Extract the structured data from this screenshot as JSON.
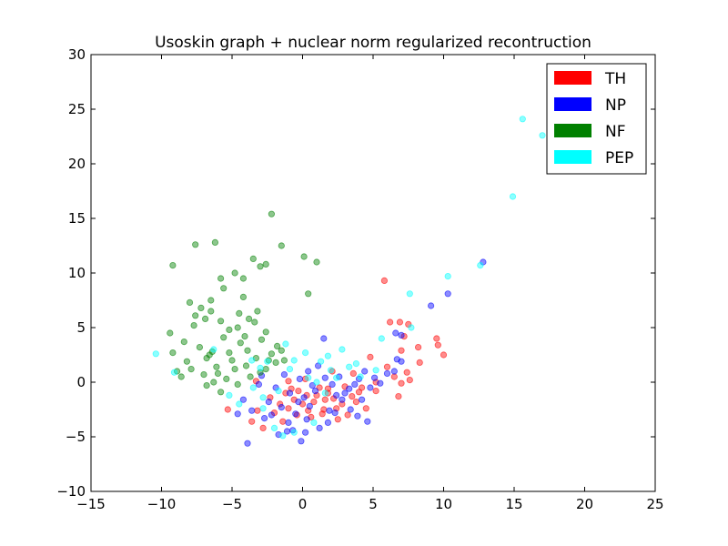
{
  "chart_data": {
    "type": "scatter",
    "title": "Usoskin graph + nuclear norm regularized recontruction",
    "xlabel": "",
    "ylabel": "",
    "xlim": [
      -15,
      25
    ],
    "ylim": [
      -10,
      30
    ],
    "xticks": [
      -15,
      -10,
      -5,
      0,
      5,
      10,
      15,
      20,
      25
    ],
    "yticks": [
      -10,
      -5,
      0,
      5,
      10,
      15,
      20,
      25,
      30
    ],
    "xtick_labels": [
      "−15",
      "−10",
      "−5",
      "0",
      "5",
      "10",
      "15",
      "20",
      "25"
    ],
    "ytick_labels": [
      "−10",
      "−5",
      "0",
      "5",
      "10",
      "15",
      "20",
      "25",
      "30"
    ],
    "grid": false,
    "legend_position": "top-right",
    "series": [
      {
        "name": "TH",
        "color": "#ff0000",
        "points": [
          [
            5.8,
            9.3
          ],
          [
            6.2,
            5.5
          ],
          [
            6.9,
            5.5
          ],
          [
            7.5,
            5.3
          ],
          [
            7.2,
            4.2
          ],
          [
            8.2,
            3.2
          ],
          [
            9.5,
            4.0
          ],
          [
            9.6,
            3.4
          ],
          [
            10.0,
            2.5
          ],
          [
            7.0,
            2.9
          ],
          [
            8.3,
            1.8
          ],
          [
            7.4,
            0.9
          ],
          [
            7.6,
            0.2
          ],
          [
            6.5,
            0.5
          ],
          [
            7.0,
            -0.1
          ],
          [
            6.8,
            -1.3
          ],
          [
            6.0,
            1.4
          ],
          [
            4.8,
            2.3
          ],
          [
            5.2,
            0.0
          ],
          [
            4.2,
            -0.5
          ],
          [
            3.5,
            -1.3
          ],
          [
            3.0,
            -0.4
          ],
          [
            2.8,
            -2.0
          ],
          [
            2.2,
            -1.5
          ],
          [
            1.8,
            -1.0
          ],
          [
            1.5,
            -2.5
          ],
          [
            1.2,
            -0.5
          ],
          [
            0.8,
            -1.8
          ],
          [
            0.3,
            -1.2
          ],
          [
            0.0,
            -2.0
          ],
          [
            -0.3,
            -0.8
          ],
          [
            -0.6,
            -1.6
          ],
          [
            -1.0,
            -2.4
          ],
          [
            -1.2,
            -1.0
          ],
          [
            -1.6,
            -2.0
          ],
          [
            -2.0,
            -2.8
          ],
          [
            -2.3,
            -1.4
          ],
          [
            -2.8,
            -4.2
          ],
          [
            -3.2,
            -2.6
          ],
          [
            -3.6,
            -3.6
          ],
          [
            -5.3,
            -2.5
          ],
          [
            -3.3,
            0.1
          ],
          [
            -1.0,
            0.1
          ],
          [
            0.2,
            0.3
          ],
          [
            2.1,
            1.0
          ],
          [
            3.6,
            0.8
          ],
          [
            5.2,
            -0.8
          ],
          [
            4.5,
            -2.4
          ],
          [
            3.2,
            -3.0
          ],
          [
            2.5,
            -3.4
          ],
          [
            1.4,
            -2.9
          ],
          [
            0.6,
            -3.2
          ],
          [
            -0.4,
            -3.0
          ],
          [
            -1.4,
            -3.6
          ],
          [
            1.0,
            -1.2
          ],
          [
            1.8,
            -0.6
          ],
          [
            2.4,
            -2.4
          ],
          [
            3.8,
            -1.8
          ],
          [
            4.0,
            -0.9
          ],
          [
            -0.8,
            -0.6
          ],
          [
            0.4,
            -2.6
          ],
          [
            1.6,
            -1.6
          ]
        ]
      },
      {
        "name": "NP",
        "color": "#0000ff",
        "points": [
          [
            12.8,
            11.0
          ],
          [
            10.3,
            8.1
          ],
          [
            9.1,
            7.0
          ],
          [
            6.6,
            4.5
          ],
          [
            7.0,
            4.3
          ],
          [
            6.7,
            2.1
          ],
          [
            7.0,
            1.9
          ],
          [
            6.5,
            1.0
          ],
          [
            6.0,
            0.8
          ],
          [
            5.1,
            0.4
          ],
          [
            4.4,
            1.0
          ],
          [
            4.8,
            -0.5
          ],
          [
            4.2,
            -1.6
          ],
          [
            4.6,
            -3.6
          ],
          [
            3.9,
            -3.1
          ],
          [
            3.4,
            -2.5
          ],
          [
            3.0,
            -1.0
          ],
          [
            2.6,
            0.5
          ],
          [
            2.1,
            -0.2
          ],
          [
            1.5,
            4.0
          ],
          [
            1.1,
            1.5
          ],
          [
            0.9,
            -0.8
          ],
          [
            0.5,
            -2.2
          ],
          [
            0.1,
            -1.4
          ],
          [
            -0.2,
            0.3
          ],
          [
            -0.5,
            -2.9
          ],
          [
            -0.9,
            -1.0
          ],
          [
            -1.1,
            -4.5
          ],
          [
            -1.5,
            -2.3
          ],
          [
            -1.9,
            -0.5
          ],
          [
            -2.4,
            -1.8
          ],
          [
            -2.7,
            -3.3
          ],
          [
            -3.1,
            -0.2
          ],
          [
            -3.6,
            -2.6
          ],
          [
            -3.9,
            -5.6
          ],
          [
            -4.6,
            -2.9
          ],
          [
            -4.2,
            -1.6
          ],
          [
            -2.9,
            0.6
          ],
          [
            -1.3,
            0.7
          ],
          [
            0.4,
            1.0
          ],
          [
            1.8,
            -3.7
          ],
          [
            1.2,
            -4.2
          ],
          [
            0.2,
            -4.6
          ],
          [
            -0.7,
            -4.4
          ],
          [
            -1.7,
            -4.8
          ],
          [
            -0.1,
            -5.4
          ],
          [
            2.3,
            -2.8
          ],
          [
            3.3,
            -0.6
          ],
          [
            1.6,
            0.4
          ],
          [
            0.7,
            -0.3
          ],
          [
            -0.3,
            -1.8
          ],
          [
            2.8,
            -1.6
          ],
          [
            3.7,
            -0.2
          ],
          [
            1.9,
            -2.6
          ],
          [
            0.3,
            -3.4
          ],
          [
            -2.2,
            -3.0
          ],
          [
            -1.0,
            -3.7
          ],
          [
            5.5,
            -0.1
          ],
          [
            4.0,
            0.3
          ],
          [
            2.4,
            -1.2
          ]
        ]
      },
      {
        "name": "NF",
        "color": "#008000",
        "points": [
          [
            -2.2,
            15.4
          ],
          [
            -1.5,
            12.5
          ],
          [
            0.1,
            11.5
          ],
          [
            1.0,
            11.0
          ],
          [
            -6.2,
            12.8
          ],
          [
            -7.6,
            12.6
          ],
          [
            -9.2,
            10.7
          ],
          [
            -5.8,
            9.5
          ],
          [
            -4.8,
            10.0
          ],
          [
            -3.5,
            11.3
          ],
          [
            -3.0,
            10.6
          ],
          [
            -2.6,
            10.8
          ],
          [
            -4.2,
            9.5
          ],
          [
            -5.6,
            8.6
          ],
          [
            -8.0,
            7.3
          ],
          [
            -6.5,
            7.5
          ],
          [
            -4.2,
            7.8
          ],
          [
            -7.2,
            6.8
          ],
          [
            -6.5,
            6.5
          ],
          [
            -4.5,
            6.3
          ],
          [
            -3.8,
            5.8
          ],
          [
            0.4,
            8.1
          ],
          [
            -7.6,
            6.1
          ],
          [
            -6.9,
            5.8
          ],
          [
            -5.8,
            5.6
          ],
          [
            -5.2,
            4.8
          ],
          [
            -4.6,
            5.0
          ],
          [
            -3.4,
            5.5
          ],
          [
            -2.6,
            4.6
          ],
          [
            -1.8,
            3.3
          ],
          [
            -9.4,
            4.5
          ],
          [
            -8.4,
            3.7
          ],
          [
            -7.3,
            3.2
          ],
          [
            -6.4,
            2.8
          ],
          [
            -5.6,
            4.1
          ],
          [
            -4.4,
            3.6
          ],
          [
            -3.9,
            2.9
          ],
          [
            -9.2,
            2.7
          ],
          [
            -8.2,
            1.9
          ],
          [
            -6.8,
            2.2
          ],
          [
            -6.1,
            1.4
          ],
          [
            -5.0,
            2.0
          ],
          [
            -4.0,
            1.5
          ],
          [
            -3.3,
            2.2
          ],
          [
            -2.6,
            1.2
          ],
          [
            -1.9,
            1.8
          ],
          [
            -7.9,
            1.2
          ],
          [
            -7.0,
            0.7
          ],
          [
            -6.0,
            0.8
          ],
          [
            -5.4,
            0.3
          ],
          [
            -4.6,
            -0.2
          ],
          [
            -3.7,
            0.5
          ],
          [
            -8.6,
            0.5
          ],
          [
            -6.8,
            -0.3
          ],
          [
            -5.8,
            -0.9
          ],
          [
            -4.8,
            1.2
          ],
          [
            -2.2,
            2.6
          ],
          [
            -1.5,
            2.9
          ],
          [
            -2.9,
            3.9
          ],
          [
            -7.7,
            5.2
          ],
          [
            -6.3,
            0.0
          ],
          [
            -5.2,
            2.7
          ],
          [
            -4.1,
            4.2
          ],
          [
            -3.0,
            0.9
          ],
          [
            -8.9,
            1.0
          ],
          [
            -6.6,
            2.5
          ],
          [
            -3.2,
            6.5
          ],
          [
            -2.4,
            2.0
          ],
          [
            -1.3,
            2.0
          ]
        ]
      },
      {
        "name": "PEP",
        "color": "#00ffff",
        "points": [
          [
            15.6,
            24.1
          ],
          [
            17.0,
            22.6
          ],
          [
            14.9,
            17.0
          ],
          [
            10.3,
            9.7
          ],
          [
            12.6,
            10.7
          ],
          [
            7.6,
            8.1
          ],
          [
            7.7,
            5.0
          ],
          [
            5.6,
            4.0
          ],
          [
            -10.4,
            2.6
          ],
          [
            -9.1,
            0.9
          ],
          [
            -6.3,
            3.0
          ],
          [
            -3.6,
            2.0
          ],
          [
            -3.0,
            1.3
          ],
          [
            -2.5,
            1.9
          ],
          [
            -1.2,
            3.5
          ],
          [
            -0.6,
            2.0
          ],
          [
            0.2,
            2.7
          ],
          [
            1.3,
            1.9
          ],
          [
            2.0,
            1.1
          ],
          [
            2.8,
            3.0
          ],
          [
            3.3,
            1.4
          ],
          [
            4.1,
            0.5
          ],
          [
            5.2,
            1.1
          ],
          [
            -3.5,
            -0.5
          ],
          [
            -4.5,
            -2.0
          ],
          [
            -2.8,
            -1.4
          ],
          [
            -1.7,
            -0.8
          ],
          [
            -0.9,
            1.2
          ],
          [
            0.4,
            0.4
          ],
          [
            1.0,
            0.0
          ],
          [
            1.8,
            2.4
          ],
          [
            2.4,
            0.4
          ],
          [
            3.8,
            1.7
          ],
          [
            -5.2,
            -1.2
          ],
          [
            -1.4,
            -4.9
          ],
          [
            -0.6,
            -4.6
          ],
          [
            -2.0,
            -4.2
          ],
          [
            0.8,
            -3.7
          ],
          [
            1.6,
            -1.0
          ],
          [
            -2.8,
            -2.4
          ]
        ]
      }
    ]
  }
}
